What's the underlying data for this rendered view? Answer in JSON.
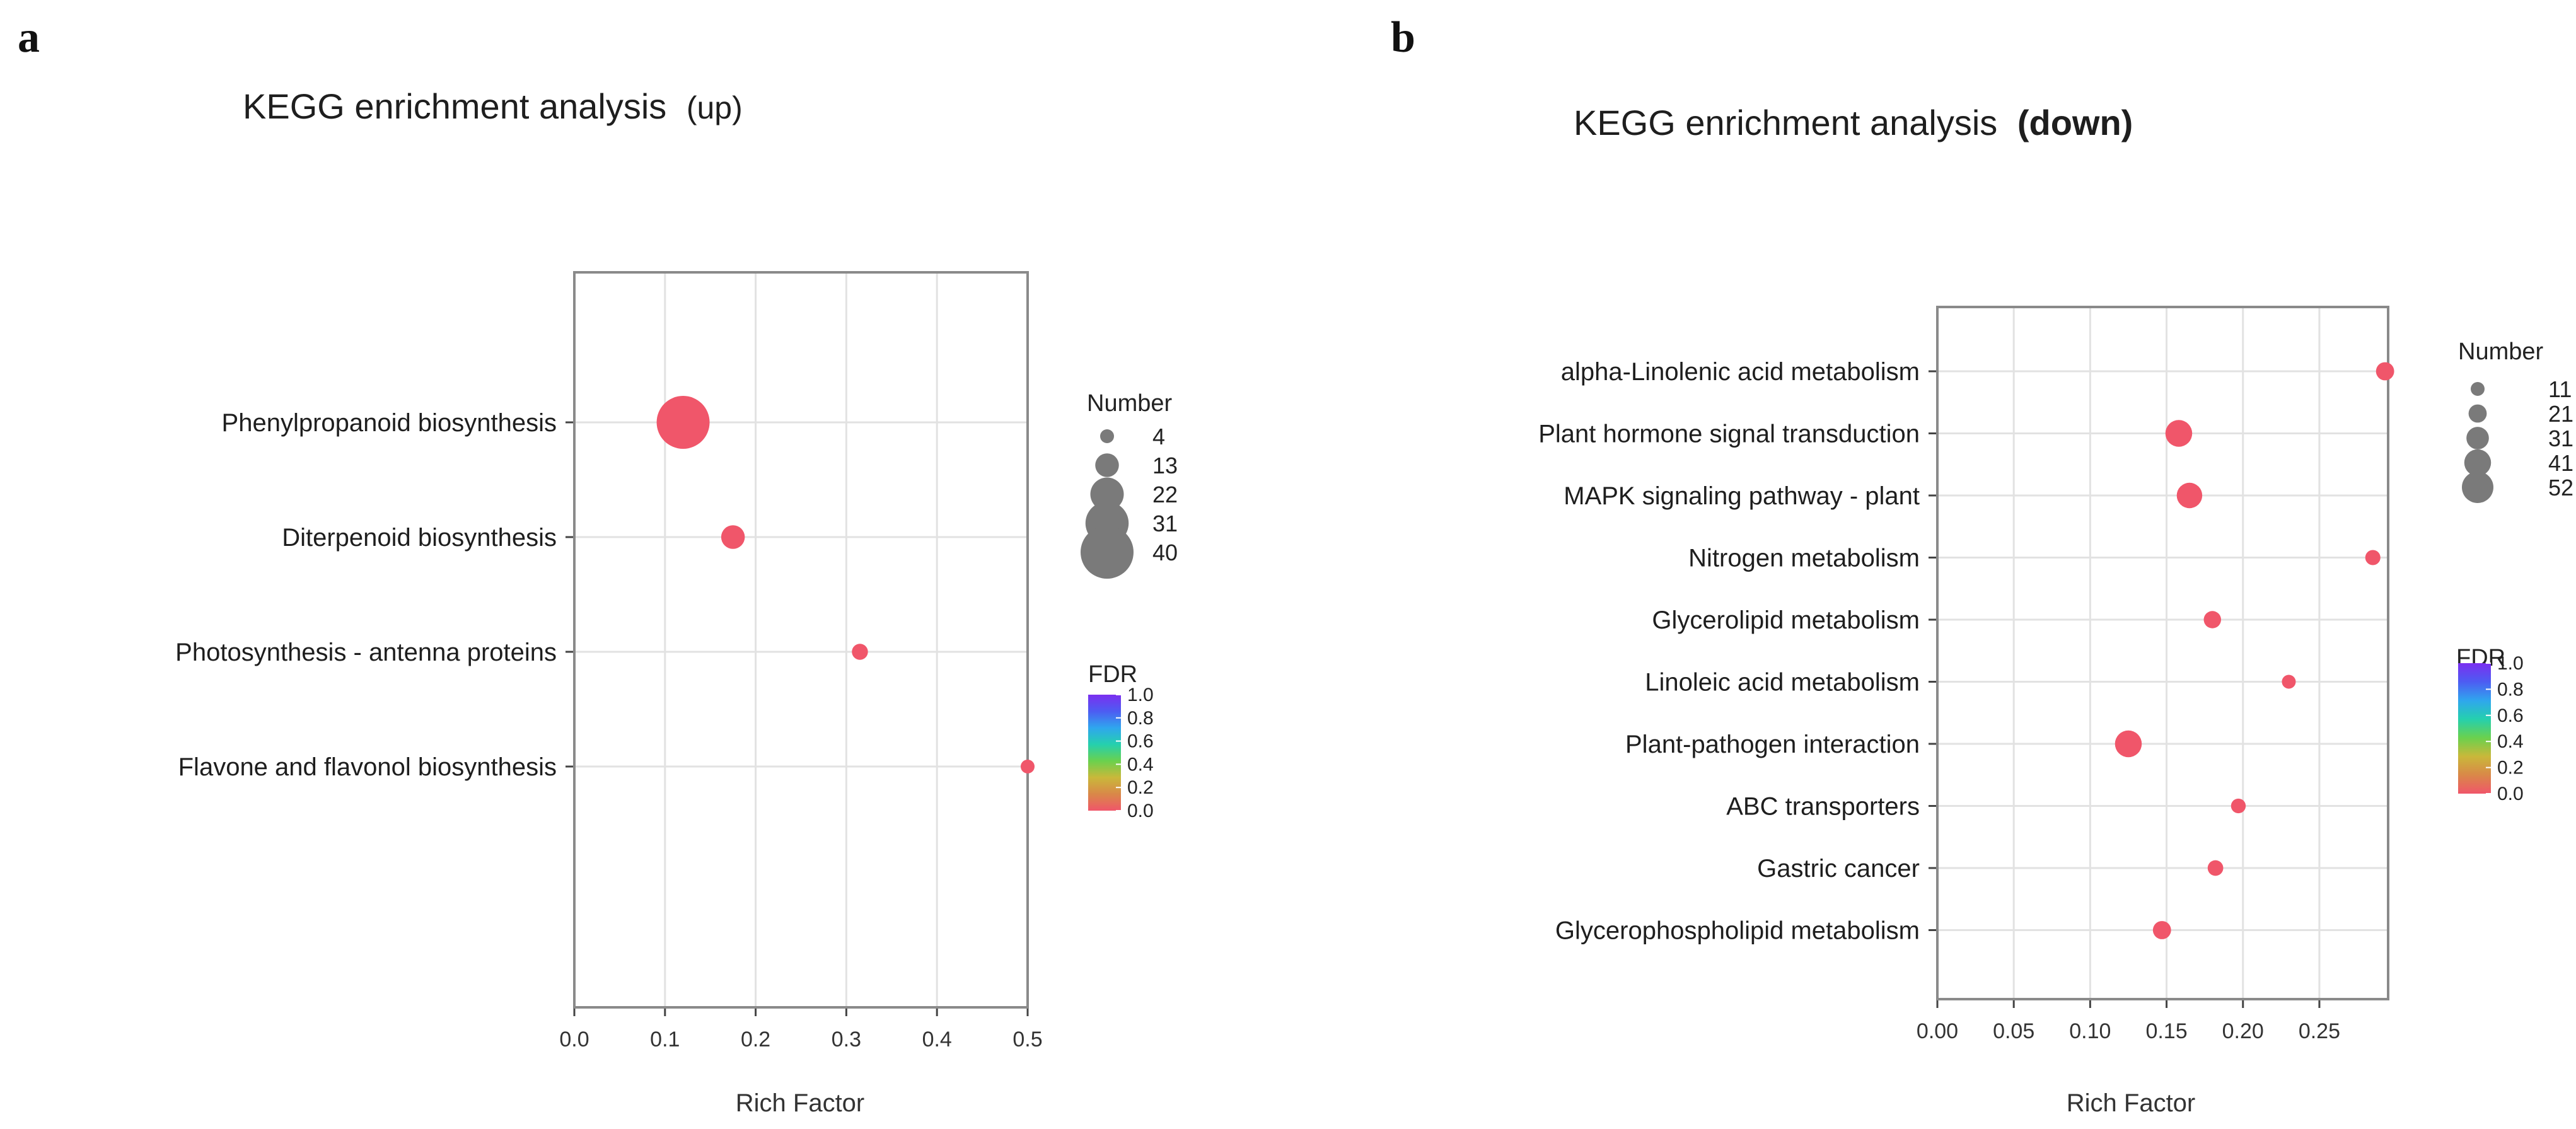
{
  "colors": {
    "point": "#f0566a",
    "legend_point": "#7a7a7a",
    "fdr_gradient": [
      "#f0566a",
      "#d98848",
      "#c9b83a",
      "#6ad14e",
      "#25d0ae",
      "#2fa6ee",
      "#4d5cf2",
      "#7b2ff0"
    ]
  },
  "chart_data": [
    {
      "panel_label": "a",
      "type": "scatter",
      "title": "KEGG enrichment analysis",
      "title_suffix": "(up)",
      "xlabel": "Rich Factor",
      "ylabel": "",
      "xlim": [
        0.0,
        0.5
      ],
      "xticks": [
        0.0,
        0.1,
        0.2,
        0.3,
        0.4,
        0.5
      ],
      "xtick_labels": [
        "0.0",
        "0.1",
        "0.2",
        "0.3",
        "0.4",
        "0.5"
      ],
      "categories": [
        "Phenylpropanoid biosynthesis",
        "Diterpenoid biosynthesis",
        "Photosynthesis - antenna proteins",
        "Flavone and flavonol biosynthesis"
      ],
      "rich_factor": [
        0.12,
        0.175,
        0.315,
        0.5
      ],
      "number": [
        40,
        13,
        6,
        4
      ],
      "fdr": [
        0.0,
        0.0,
        0.0,
        0.0
      ],
      "size_legend": {
        "title": "Number",
        "values": [
          4,
          13,
          22,
          31,
          40
        ]
      },
      "color_legend": {
        "title": "FDR",
        "range": [
          0.0,
          1.0
        ],
        "ticks": [
          1.0,
          0.8,
          0.6,
          0.4,
          0.2,
          0.0
        ],
        "tick_labels": [
          "1.0",
          "0.8",
          "0.6",
          "0.4",
          "0.2",
          "0.0"
        ]
      },
      "grid": true
    },
    {
      "panel_label": "b",
      "type": "scatter",
      "title": "KEGG enrichment analysis",
      "title_suffix": "(down)",
      "xlabel": "Rich Factor",
      "ylabel": "",
      "xlim": [
        0.0,
        0.295
      ],
      "xticks": [
        0.0,
        0.05,
        0.1,
        0.15,
        0.2,
        0.25
      ],
      "xtick_labels": [
        "0.00",
        "0.05",
        "0.10",
        "0.15",
        "0.20",
        "0.25"
      ],
      "categories": [
        "alpha-Linolenic acid metabolism",
        "Plant hormone signal transduction",
        "MAPK signaling pathway - plant",
        "Nitrogen metabolism",
        "Glycerolipid metabolism",
        "Linoleic acid metabolism",
        "Plant-pathogen interaction",
        "ABC transporters",
        "Gastric cancer",
        "Glycerophospholipid metabolism"
      ],
      "rich_factor": [
        0.293,
        0.158,
        0.165,
        0.285,
        0.18,
        0.23,
        0.125,
        0.197,
        0.182,
        0.147
      ],
      "number": [
        21,
        41,
        38,
        14,
        19,
        11,
        41,
        13,
        15,
        21
      ],
      "fdr": [
        0.0,
        0.0,
        0.0,
        0.0,
        0.0,
        0.0,
        0.0,
        0.0,
        0.0,
        0.0
      ],
      "size_legend": {
        "title": "Number",
        "values": [
          11,
          21,
          31,
          41,
          52
        ]
      },
      "color_legend": {
        "title": "FDR",
        "range": [
          0.0,
          1.0
        ],
        "ticks": [
          1.0,
          0.8,
          0.6,
          0.4,
          0.2,
          0.0
        ],
        "tick_labels": [
          "1.0",
          "0.8",
          "0.6",
          "0.4",
          "0.2",
          "0.0"
        ]
      },
      "grid": true
    }
  ]
}
